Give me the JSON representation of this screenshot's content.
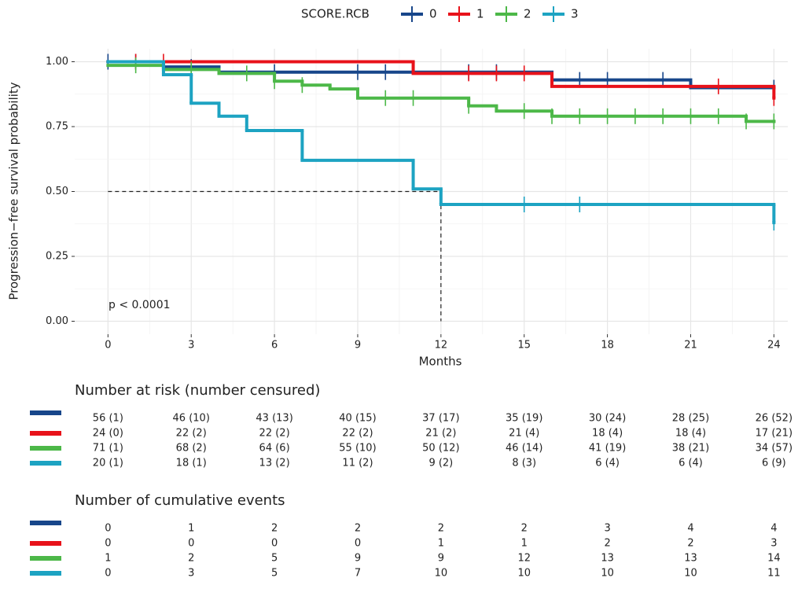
{
  "chart_data": {
    "type": "km",
    "legend_title": "SCORE.RCB",
    "x_label": "Months",
    "y_label": "Progression−free survival probability",
    "annotation": "p < 0.0001",
    "xlim": [
      -1.2,
      24.5
    ],
    "ylim": [
      -0.05,
      1.05
    ],
    "xticks": [
      0,
      3,
      6,
      9,
      12,
      15,
      18,
      21,
      24
    ],
    "yticks": [
      {
        "value": 0,
        "label": "0.00"
      },
      {
        "value": 0.25,
        "label": "0.25"
      },
      {
        "value": 0.5,
        "label": "0.50"
      },
      {
        "value": 0.75,
        "label": "0.75"
      },
      {
        "value": 1,
        "label": "1.00"
      }
    ],
    "grid": true,
    "median_reference": {
      "x": 12,
      "y": 0.5
    },
    "series": [
      {
        "name": "0",
        "color": "#17468a",
        "x": [
          0,
          2,
          4,
          16,
          21,
          24
        ],
        "values": [
          1.0,
          0.98,
          0.96,
          0.93,
          0.9,
          0.9
        ],
        "censor_x": [
          0,
          1,
          3,
          6,
          9,
          10,
          13,
          14,
          17,
          18,
          20,
          24
        ]
      },
      {
        "name": "1",
        "color": "#e8121a",
        "x": [
          0,
          11,
          16,
          24
        ],
        "values": [
          1.0,
          0.955,
          0.905,
          0.86
        ],
        "censor_x": [
          1,
          2,
          13,
          14,
          15,
          22,
          24
        ]
      },
      {
        "name": "2",
        "color": "#4cb848",
        "x": [
          0,
          2,
          4,
          6,
          7,
          8,
          9,
          13,
          14,
          16,
          23,
          24
        ],
        "values": [
          0.986,
          0.97,
          0.955,
          0.925,
          0.91,
          0.895,
          0.86,
          0.83,
          0.81,
          0.79,
          0.77,
          0.77
        ],
        "censor_x": [
          1,
          3,
          5,
          6,
          7,
          10,
          11,
          13,
          15,
          16,
          17,
          18,
          19,
          20,
          21,
          22,
          23,
          24
        ]
      },
      {
        "name": "3",
        "color": "#1da3c2",
        "x": [
          0,
          2,
          3,
          4,
          5,
          7,
          11,
          12,
          24
        ],
        "values": [
          1.0,
          0.95,
          0.84,
          0.79,
          0.735,
          0.62,
          0.51,
          0.45,
          0.38
        ],
        "censor_x": [
          15,
          17,
          24
        ]
      }
    ]
  },
  "risk_table": {
    "title": "Number at risk (number censured)",
    "rows": [
      [
        "56 (1)",
        "46 (10)",
        "43 (13)",
        "40 (15)",
        "37 (17)",
        "35 (19)",
        "30 (24)",
        "28 (25)",
        "26 (52)"
      ],
      [
        "24 (0)",
        "22 (2)",
        "22 (2)",
        "22 (2)",
        "21 (2)",
        "21 (4)",
        "18 (4)",
        "18 (4)",
        "17 (21)"
      ],
      [
        "71 (1)",
        "68 (2)",
        "64 (6)",
        "55 (10)",
        "50 (12)",
        "46 (14)",
        "41 (19)",
        "38 (21)",
        "34 (57)"
      ],
      [
        "20 (1)",
        "18 (1)",
        "13 (2)",
        "11 (2)",
        "9 (2)",
        "8 (3)",
        "6 (4)",
        "6 (4)",
        "6 (9)"
      ]
    ]
  },
  "events_table": {
    "title": "Number of cumulative events",
    "rows": [
      [
        0,
        1,
        2,
        2,
        2,
        2,
        3,
        4,
        4
      ],
      [
        0,
        0,
        0,
        0,
        1,
        1,
        2,
        2,
        3
      ],
      [
        1,
        2,
        5,
        9,
        9,
        12,
        13,
        13,
        14
      ],
      [
        0,
        3,
        5,
        7,
        10,
        10,
        10,
        10,
        11
      ]
    ]
  }
}
